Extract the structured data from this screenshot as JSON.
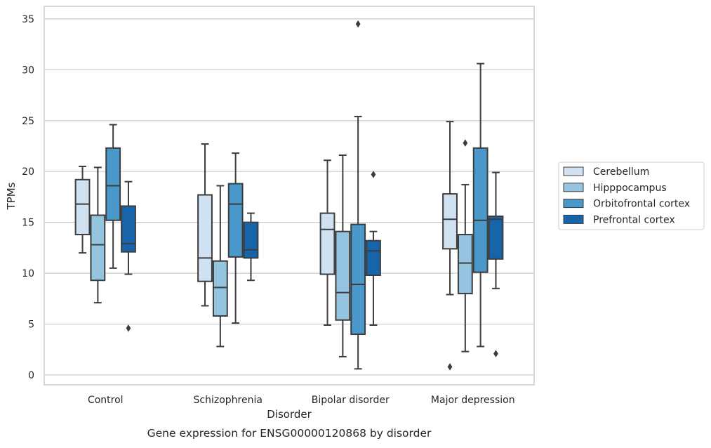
{
  "chart_data": {
    "type": "box",
    "title": "",
    "caption": "Gene expression for ENSG00000120868 by disorder",
    "xlabel": "Disorder",
    "ylabel": "TPMs",
    "ylim": [
      -1,
      36
    ],
    "yticks": [
      0,
      5,
      10,
      15,
      20,
      25,
      30,
      35
    ],
    "grid": "horizontal",
    "legend_position": "right",
    "categories": [
      "Control",
      "Schizophrenia",
      "Bipolar disorder",
      "Major depression"
    ],
    "series": [
      {
        "name": "Cerebellum",
        "color": "#d0e1f2",
        "boxes": [
          {
            "whisker_low": 12.0,
            "q1": 13.8,
            "median": 16.8,
            "q3": 19.2,
            "whisker_high": 20.5,
            "outliers": []
          },
          {
            "whisker_low": 6.8,
            "q1": 9.2,
            "median": 11.5,
            "q3": 17.7,
            "whisker_high": 22.7,
            "outliers": []
          },
          {
            "whisker_low": 4.9,
            "q1": 9.9,
            "median": 14.3,
            "q3": 15.9,
            "whisker_high": 21.1,
            "outliers": []
          },
          {
            "whisker_low": 7.9,
            "q1": 12.4,
            "median": 15.3,
            "q3": 17.8,
            "whisker_high": 24.9,
            "outliers": [
              0.8
            ]
          }
        ]
      },
      {
        "name": "Hipppocampus",
        "color": "#94c4df",
        "boxes": [
          {
            "whisker_low": 7.1,
            "q1": 9.3,
            "median": 12.8,
            "q3": 15.7,
            "whisker_high": 20.4,
            "outliers": []
          },
          {
            "whisker_low": 2.8,
            "q1": 5.8,
            "median": 8.6,
            "q3": 11.2,
            "whisker_high": 18.6,
            "outliers": []
          },
          {
            "whisker_low": 1.8,
            "q1": 5.4,
            "median": 8.1,
            "q3": 14.1,
            "whisker_high": 21.6,
            "outliers": []
          },
          {
            "whisker_low": 2.3,
            "q1": 8.0,
            "median": 11.0,
            "q3": 13.8,
            "whisker_high": 18.7,
            "outliers": [
              22.8
            ]
          }
        ]
      },
      {
        "name": "Orbitofrontal cortex",
        "color": "#4a98c9",
        "boxes": [
          {
            "whisker_low": 10.5,
            "q1": 15.2,
            "median": 18.6,
            "q3": 22.3,
            "whisker_high": 24.6,
            "outliers": []
          },
          {
            "whisker_low": 5.1,
            "q1": 11.6,
            "median": 16.8,
            "q3": 18.8,
            "whisker_high": 21.8,
            "outliers": []
          },
          {
            "whisker_low": 0.6,
            "q1": 4.0,
            "median": 8.9,
            "q3": 14.8,
            "whisker_high": 25.4,
            "outliers": [
              34.5
            ]
          },
          {
            "whisker_low": 2.8,
            "q1": 10.1,
            "median": 15.2,
            "q3": 22.3,
            "whisker_high": 30.6,
            "outliers": []
          }
        ]
      },
      {
        "name": "Prefrontal cortex",
        "color": "#1764ab",
        "boxes": [
          {
            "whisker_low": 9.9,
            "q1": 12.1,
            "median": 12.9,
            "q3": 16.6,
            "whisker_high": 19.0,
            "outliers": [
              4.6
            ]
          },
          {
            "whisker_low": 9.3,
            "q1": 11.5,
            "median": 12.3,
            "q3": 15.0,
            "whisker_high": 15.9,
            "outliers": []
          },
          {
            "whisker_low": 4.9,
            "q1": 9.8,
            "median": 12.2,
            "q3": 13.2,
            "whisker_high": 14.1,
            "outliers": [
              19.7
            ]
          },
          {
            "whisker_low": 8.5,
            "q1": 11.4,
            "median": 15.3,
            "q3": 15.6,
            "whisker_high": 19.9,
            "outliers": [
              2.1
            ]
          }
        ]
      }
    ]
  }
}
